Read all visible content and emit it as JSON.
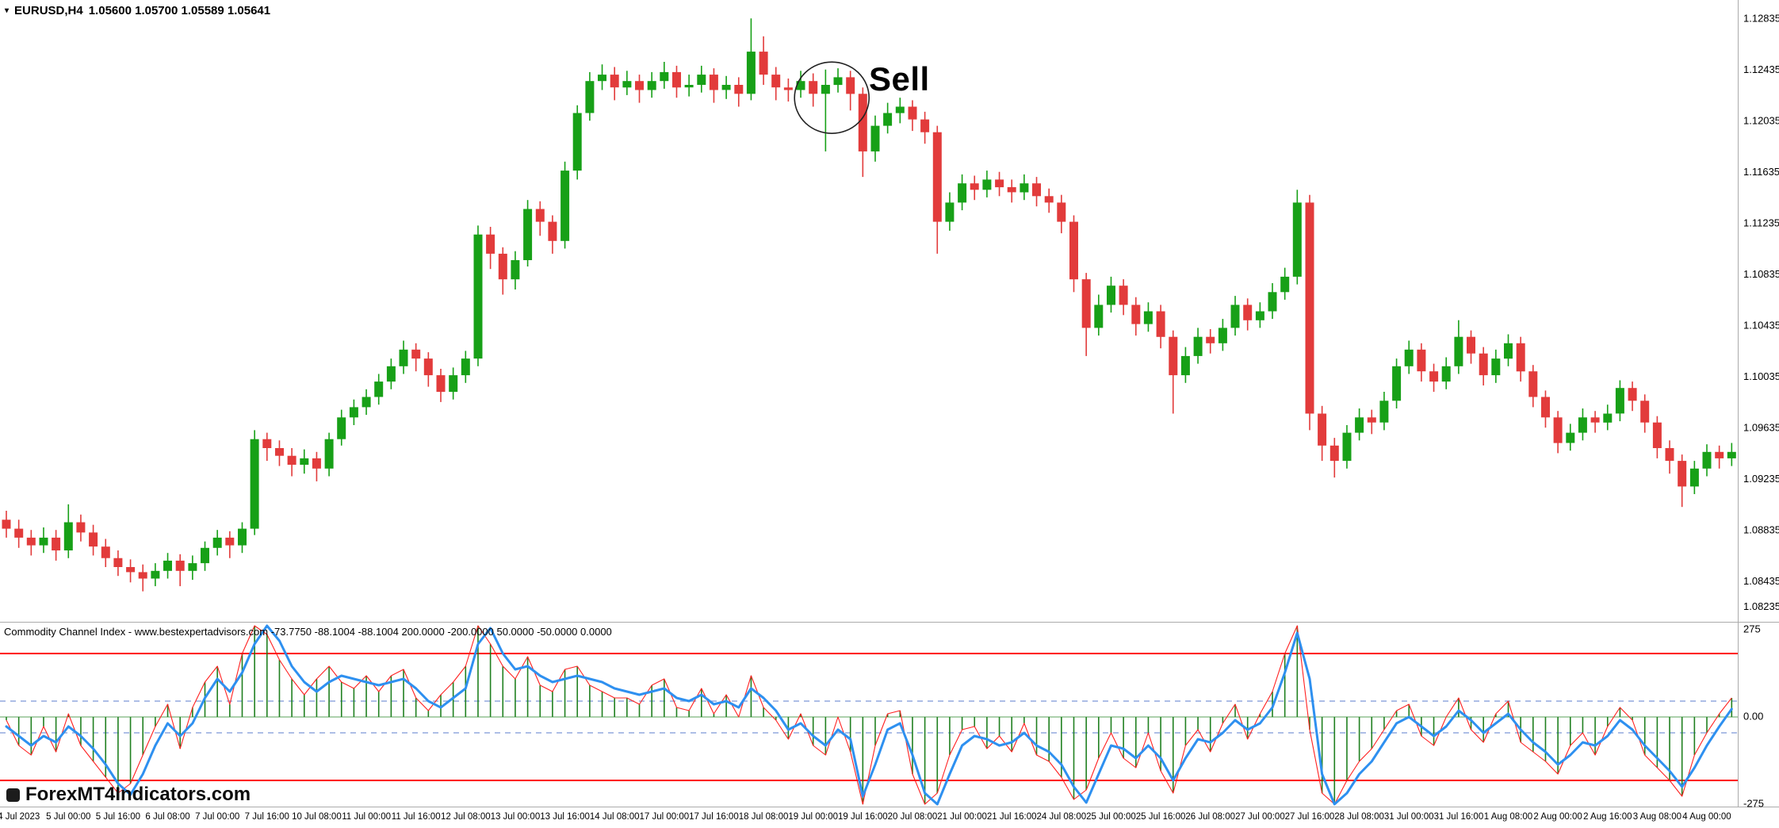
{
  "window": {
    "symbol_header": {
      "symbol": "EURUSD,H4",
      "ohlc": "1.05600 1.05700 1.05589 1.05641"
    }
  },
  "annotation": {
    "label": "Sell"
  },
  "watermark": "ForexMT4Indicators.com",
  "colors": {
    "background": "#FFFFFF",
    "bull": "#17A017",
    "bear": "#E23B3B",
    "separator": "#ABABAB",
    "level_line": "#FF0000",
    "band_line": "#92A8DE",
    "histogram": "#208020",
    "cci_line": "#FF2020",
    "signal_line": "#2E90F0",
    "axis_text": "#000000",
    "annotation_circle": "#222222"
  },
  "chart_data": {
    "type": "candlestick",
    "title": "EURUSD H4 with Commodity Channel Index",
    "symbol": "EURUSD",
    "timeframe": "H4",
    "current_bar": {
      "open": "1.05600",
      "high": "1.05700",
      "low": "1.05589",
      "close": "1.05641"
    },
    "price_range": [
      1.08135,
      1.12984
    ],
    "price_axis_labels": [
      "1.12835",
      "1.12435",
      "1.12035",
      "1.11635",
      "1.11235",
      "1.10835",
      "1.10435",
      "1.10035",
      "1.09635",
      "1.09235",
      "1.08835",
      "1.08435",
      "1.08235"
    ],
    "time_axis_labels": [
      "4 Jul 2023",
      "5 Jul 00:00",
      "5 Jul 16:00",
      "6 Jul 08:00",
      "7 Jul 00:00",
      "7 Jul 16:00",
      "10 Jul 08:00",
      "11 Jul 00:00",
      "11 Jul 16:00",
      "12 Jul 08:00",
      "13 Jul 00:00",
      "13 Jul 16:00",
      "14 Jul 08:00",
      "17 Jul 00:00",
      "17 Jul 16:00",
      "18 Jul 08:00",
      "19 Jul 00:00",
      "19 Jul 16:00",
      "20 Jul 08:00",
      "21 Jul 00:00",
      "21 Jul 16:00",
      "24 Jul 08:00",
      "25 Jul 00:00",
      "25 Jul 16:00",
      "26 Jul 08:00",
      "27 Jul 00:00",
      "27 Jul 16:00",
      "28 Jul 08:00",
      "31 Jul 00:00",
      "31 Jul 16:00",
      "1 Aug 08:00",
      "2 Aug 00:00",
      "2 Aug 16:00",
      "3 Aug 08:00",
      "4 Aug 00:00"
    ],
    "sell_annotation": {
      "bar_index": 66.5,
      "price": 1.1222
    },
    "candles": [
      [
        1.0892,
        1.0899,
        1.0878,
        1.0885
      ],
      [
        1.0885,
        1.0892,
        1.087,
        1.0878
      ],
      [
        1.0878,
        1.0884,
        1.0864,
        1.0872
      ],
      [
        1.0872,
        1.0886,
        1.0866,
        1.0878
      ],
      [
        1.0878,
        1.0884,
        1.086,
        1.0868
      ],
      [
        1.0868,
        1.0904,
        1.0862,
        1.089
      ],
      [
        1.089,
        1.0896,
        1.0875,
        1.0882
      ],
      [
        1.0882,
        1.0888,
        1.0864,
        1.0871
      ],
      [
        1.0871,
        1.0877,
        1.0855,
        1.0862
      ],
      [
        1.0862,
        1.0868,
        1.0848,
        1.0855
      ],
      [
        1.0855,
        1.0861,
        1.0843,
        1.0851
      ],
      [
        1.0851,
        1.0857,
        1.0836,
        1.0846
      ],
      [
        1.0846,
        1.0858,
        1.084,
        1.0852
      ],
      [
        1.0852,
        1.0866,
        1.0846,
        1.086
      ],
      [
        1.086,
        1.0865,
        1.084,
        1.0852
      ],
      [
        1.0852,
        1.0864,
        1.0845,
        1.0858
      ],
      [
        1.0858,
        1.0875,
        1.0852,
        1.087
      ],
      [
        1.087,
        1.0884,
        1.0864,
        1.0878
      ],
      [
        1.0878,
        1.0883,
        1.0862,
        1.0872
      ],
      [
        1.0872,
        1.089,
        1.0866,
        1.0885
      ],
      [
        1.0885,
        1.0962,
        1.088,
        1.0955
      ],
      [
        1.0955,
        1.096,
        1.0938,
        1.0948
      ],
      [
        1.0948,
        1.0954,
        1.0934,
        1.0942
      ],
      [
        1.0942,
        1.0948,
        1.0926,
        1.0935
      ],
      [
        1.0935,
        1.0947,
        1.0928,
        1.094
      ],
      [
        1.094,
        1.0945,
        1.0922,
        1.0932
      ],
      [
        1.0932,
        1.096,
        1.0926,
        1.0955
      ],
      [
        1.0955,
        1.0978,
        1.095,
        1.0972
      ],
      [
        1.0972,
        1.0986,
        1.0966,
        1.098
      ],
      [
        1.098,
        1.0994,
        1.0974,
        1.0988
      ],
      [
        1.0988,
        1.1006,
        1.0982,
        1.1
      ],
      [
        1.1,
        1.1018,
        1.0994,
        1.1012
      ],
      [
        1.1012,
        1.1032,
        1.1006,
        1.1025
      ],
      [
        1.1025,
        1.103,
        1.1008,
        1.1018
      ],
      [
        1.1018,
        1.1023,
        1.0996,
        1.1005
      ],
      [
        1.1005,
        1.101,
        1.0984,
        1.0992
      ],
      [
        1.0992,
        1.1011,
        1.0986,
        1.1005
      ],
      [
        1.1005,
        1.1024,
        1.0999,
        1.1018
      ],
      [
        1.1018,
        1.1122,
        1.1012,
        1.1115
      ],
      [
        1.1115,
        1.1121,
        1.1088,
        1.11
      ],
      [
        1.11,
        1.1105,
        1.1068,
        1.108
      ],
      [
        1.108,
        1.1102,
        1.1072,
        1.1095
      ],
      [
        1.1095,
        1.1142,
        1.109,
        1.1135
      ],
      [
        1.1135,
        1.1141,
        1.1114,
        1.1125
      ],
      [
        1.1125,
        1.113,
        1.11,
        1.111
      ],
      [
        1.111,
        1.1172,
        1.1104,
        1.1165
      ],
      [
        1.1165,
        1.1216,
        1.1158,
        1.121
      ],
      [
        1.121,
        1.1242,
        1.1204,
        1.1235
      ],
      [
        1.1235,
        1.1248,
        1.1228,
        1.124
      ],
      [
        1.124,
        1.1246,
        1.122,
        1.123
      ],
      [
        1.123,
        1.1243,
        1.1224,
        1.1235
      ],
      [
        1.1235,
        1.124,
        1.1218,
        1.1228
      ],
      [
        1.1228,
        1.1242,
        1.1222,
        1.1235
      ],
      [
        1.1235,
        1.125,
        1.1229,
        1.1242
      ],
      [
        1.1242,
        1.1247,
        1.1222,
        1.123
      ],
      [
        1.123,
        1.124,
        1.1223,
        1.1232
      ],
      [
        1.1232,
        1.1247,
        1.1226,
        1.124
      ],
      [
        1.124,
        1.1245,
        1.1218,
        1.1228
      ],
      [
        1.1228,
        1.1239,
        1.1221,
        1.1232
      ],
      [
        1.1232,
        1.1238,
        1.1215,
        1.1225
      ],
      [
        1.1225,
        1.1284,
        1.122,
        1.1258
      ],
      [
        1.1258,
        1.127,
        1.1232,
        1.124
      ],
      [
        1.124,
        1.1246,
        1.122,
        1.123
      ],
      [
        1.123,
        1.1237,
        1.1219,
        1.1228
      ],
      [
        1.1228,
        1.1243,
        1.1222,
        1.1235
      ],
      [
        1.1235,
        1.1241,
        1.1215,
        1.1225
      ],
      [
        1.1225,
        1.1244,
        1.118,
        1.1232
      ],
      [
        1.1232,
        1.1245,
        1.1226,
        1.1238
      ],
      [
        1.1238,
        1.1243,
        1.1212,
        1.1225
      ],
      [
        1.1225,
        1.123,
        1.116,
        1.118
      ],
      [
        1.118,
        1.1208,
        1.1172,
        1.12
      ],
      [
        1.12,
        1.1218,
        1.1194,
        1.121
      ],
      [
        1.121,
        1.1222,
        1.1202,
        1.1215
      ],
      [
        1.1215,
        1.122,
        1.1196,
        1.1205
      ],
      [
        1.1205,
        1.1211,
        1.1186,
        1.1195
      ],
      [
        1.1195,
        1.12,
        1.11,
        1.1125
      ],
      [
        1.1125,
        1.1148,
        1.1118,
        1.114
      ],
      [
        1.114,
        1.1162,
        1.1134,
        1.1155
      ],
      [
        1.1155,
        1.1161,
        1.1142,
        1.115
      ],
      [
        1.115,
        1.1165,
        1.1144,
        1.1158
      ],
      [
        1.1158,
        1.1164,
        1.1145,
        1.1152
      ],
      [
        1.1152,
        1.1158,
        1.114,
        1.1148
      ],
      [
        1.1148,
        1.1162,
        1.1142,
        1.1155
      ],
      [
        1.1155,
        1.116,
        1.1137,
        1.1145
      ],
      [
        1.1145,
        1.1151,
        1.1132,
        1.114
      ],
      [
        1.114,
        1.1146,
        1.1116,
        1.1125
      ],
      [
        1.1125,
        1.113,
        1.107,
        1.108
      ],
      [
        1.108,
        1.1085,
        1.102,
        1.1042
      ],
      [
        1.1042,
        1.1068,
        1.1036,
        1.106
      ],
      [
        1.106,
        1.1082,
        1.1054,
        1.1075
      ],
      [
        1.1075,
        1.108,
        1.1052,
        1.106
      ],
      [
        1.106,
        1.1066,
        1.1036,
        1.1045
      ],
      [
        1.1045,
        1.1062,
        1.1039,
        1.1055
      ],
      [
        1.1055,
        1.106,
        1.1026,
        1.1035
      ],
      [
        1.1035,
        1.104,
        1.0975,
        1.1005
      ],
      [
        1.1005,
        1.1027,
        1.0999,
        1.102
      ],
      [
        1.102,
        1.1042,
        1.1014,
        1.1035
      ],
      [
        1.1035,
        1.1041,
        1.1022,
        1.103
      ],
      [
        1.103,
        1.1049,
        1.1024,
        1.1042
      ],
      [
        1.1042,
        1.1067,
        1.1036,
        1.106
      ],
      [
        1.106,
        1.1065,
        1.104,
        1.1048
      ],
      [
        1.1048,
        1.1062,
        1.1042,
        1.1055
      ],
      [
        1.1055,
        1.1077,
        1.1049,
        1.107
      ],
      [
        1.107,
        1.1089,
        1.1064,
        1.1082
      ],
      [
        1.1082,
        1.115,
        1.1076,
        1.114
      ],
      [
        1.114,
        1.1146,
        1.0962,
        1.0975
      ],
      [
        1.0975,
        1.0981,
        1.0938,
        1.095
      ],
      [
        1.095,
        1.0956,
        1.0925,
        1.0938
      ],
      [
        1.0938,
        1.0966,
        1.0932,
        1.096
      ],
      [
        1.096,
        1.0979,
        1.0954,
        1.0972
      ],
      [
        1.0972,
        1.0978,
        1.0959,
        1.0968
      ],
      [
        1.0968,
        1.0992,
        1.0962,
        1.0985
      ],
      [
        1.0985,
        1.1018,
        1.0979,
        1.1012
      ],
      [
        1.1012,
        1.1032,
        1.1006,
        1.1025
      ],
      [
        1.1025,
        1.103,
        1.1,
        1.1008
      ],
      [
        1.1008,
        1.1014,
        1.0992,
        1.1
      ],
      [
        1.1,
        1.1019,
        1.0994,
        1.1012
      ],
      [
        1.1012,
        1.1048,
        1.1006,
        1.1035
      ],
      [
        1.1035,
        1.104,
        1.1014,
        1.1022
      ],
      [
        1.1022,
        1.1027,
        1.0997,
        1.1005
      ],
      [
        1.1005,
        1.1025,
        1.0999,
        1.1018
      ],
      [
        1.1018,
        1.1037,
        1.1012,
        1.103
      ],
      [
        1.103,
        1.1035,
        1.1,
        1.1008
      ],
      [
        1.1008,
        1.1013,
        1.098,
        1.0988
      ],
      [
        1.0988,
        1.0993,
        1.0964,
        1.0972
      ],
      [
        1.0972,
        1.0977,
        1.0944,
        1.0952
      ],
      [
        1.0952,
        1.0967,
        1.0946,
        1.096
      ],
      [
        1.096,
        1.0979,
        1.0954,
        1.0972
      ],
      [
        1.0972,
        1.0977,
        1.096,
        1.0968
      ],
      [
        1.0968,
        1.0982,
        1.0962,
        1.0975
      ],
      [
        1.0975,
        1.1001,
        1.0969,
        1.0995
      ],
      [
        1.0995,
        1.1,
        1.0977,
        1.0985
      ],
      [
        1.0985,
        1.099,
        1.096,
        1.0968
      ],
      [
        1.0968,
        1.0973,
        1.094,
        1.0948
      ],
      [
        1.0948,
        1.0954,
        1.0928,
        1.0938
      ],
      [
        1.0938,
        1.0943,
        1.0902,
        1.0918
      ],
      [
        1.0918,
        1.0938,
        1.0912,
        1.0932
      ],
      [
        1.0932,
        1.0951,
        1.0926,
        1.0945
      ],
      [
        1.0945,
        1.095,
        1.0932,
        1.094
      ],
      [
        1.094,
        1.0952,
        1.0934,
        1.0945
      ]
    ],
    "indicator": {
      "name": "Commodity Channel Index",
      "title_line": "Commodity Channel Index - www.bestexpertadvisors.com -73.7750 -88.1004 -88.1004 200.0000 -200.0000 50.0000 -50.0000 0.0000",
      "axis_labels": [
        "275",
        "0.00",
        "-275"
      ],
      "axis_range": [
        -275,
        275
      ],
      "levels": [
        200,
        -200
      ],
      "bands": [
        50,
        -50
      ],
      "zero": 0,
      "cci": [
        -10,
        -90,
        -120,
        -30,
        -110,
        10,
        -90,
        -140,
        -190,
        -240,
        -210,
        -120,
        -30,
        40,
        -100,
        30,
        110,
        160,
        40,
        200,
        290,
        260,
        180,
        120,
        70,
        120,
        160,
        110,
        90,
        130,
        80,
        130,
        150,
        60,
        20,
        70,
        110,
        160,
        290,
        230,
        160,
        120,
        190,
        100,
        80,
        150,
        160,
        100,
        80,
        60,
        60,
        40,
        100,
        120,
        30,
        20,
        90,
        10,
        70,
        0,
        130,
        30,
        -10,
        -70,
        10,
        -90,
        -120,
        0,
        -110,
        -280,
        -90,
        10,
        20,
        -180,
        -280,
        -240,
        -120,
        -40,
        -30,
        -100,
        -60,
        -110,
        -20,
        -120,
        -140,
        -190,
        -260,
        -230,
        -130,
        -50,
        -130,
        -160,
        -50,
        -170,
        -240,
        -90,
        -40,
        -110,
        -20,
        40,
        -70,
        10,
        80,
        200,
        290,
        -40,
        -240,
        -300,
        -200,
        -140,
        -100,
        -40,
        20,
        40,
        -60,
        -90,
        0,
        60,
        -40,
        -80,
        10,
        50,
        -80,
        -110,
        -140,
        -180,
        -90,
        -50,
        -120,
        -30,
        30,
        -10,
        -120,
        -160,
        -200,
        -250,
        -120,
        -50,
        10,
        60
      ],
      "signal": [
        -30,
        -60,
        -90,
        -60,
        -80,
        -30,
        -60,
        -100,
        -150,
        -210,
        -245,
        -180,
        -90,
        -20,
        -60,
        -20,
        60,
        120,
        80,
        140,
        230,
        290,
        240,
        160,
        110,
        80,
        110,
        130,
        120,
        110,
        100,
        110,
        120,
        90,
        50,
        30,
        60,
        90,
        230,
        280,
        200,
        150,
        160,
        130,
        110,
        120,
        130,
        120,
        110,
        90,
        80,
        70,
        80,
        90,
        60,
        50,
        70,
        40,
        50,
        30,
        90,
        60,
        20,
        -40,
        -20,
        -60,
        -90,
        -40,
        -70,
        -250,
        -150,
        -40,
        -20,
        -120,
        -240,
        -275,
        -180,
        -90,
        -60,
        -70,
        -90,
        -80,
        -50,
        -90,
        -110,
        -150,
        -220,
        -270,
        -180,
        -90,
        -100,
        -130,
        -90,
        -130,
        -200,
        -130,
        -70,
        -80,
        -50,
        -10,
        -40,
        -20,
        30,
        140,
        265,
        120,
        -180,
        -280,
        -240,
        -180,
        -140,
        -80,
        -20,
        0,
        -30,
        -60,
        -30,
        20,
        -10,
        -50,
        -20,
        10,
        -40,
        -80,
        -110,
        -150,
        -120,
        -80,
        -90,
        -60,
        -10,
        -40,
        -90,
        -130,
        -170,
        -220,
        -160,
        -90,
        -30,
        25
      ]
    }
  }
}
